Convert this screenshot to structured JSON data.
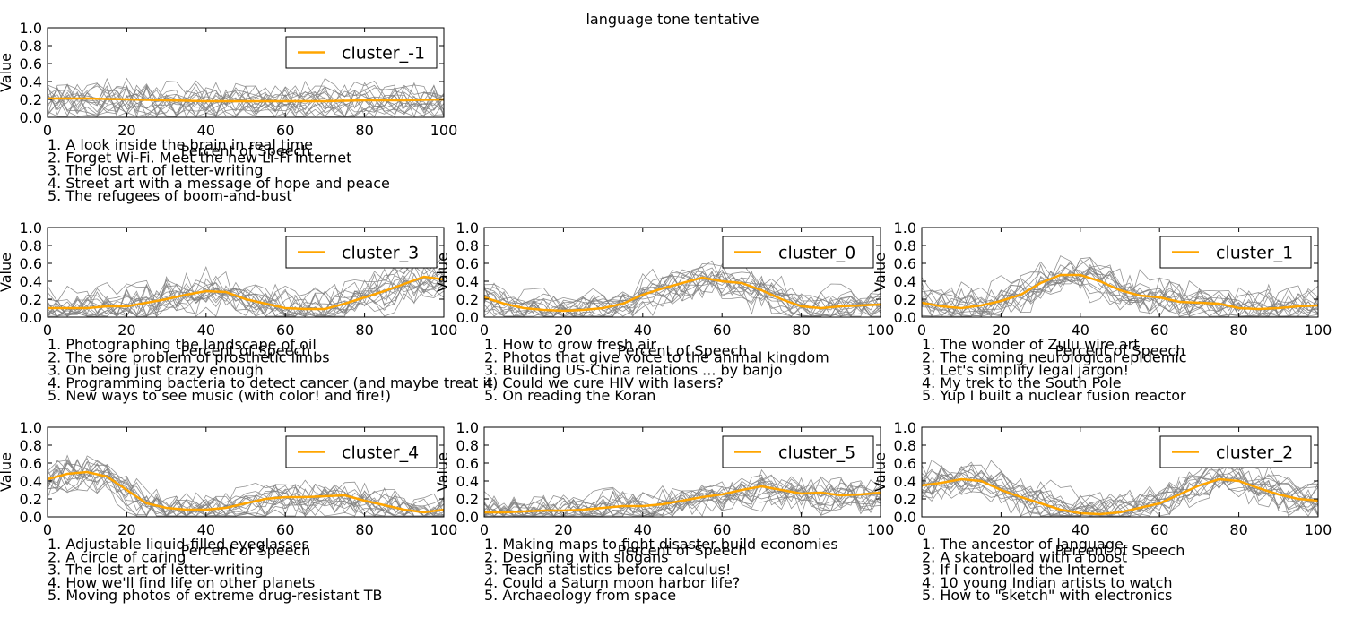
{
  "figure_title": "language tone tentative",
  "colors": {
    "cluster_line": "#FFA500",
    "sample_lines": "#808080",
    "axes": "#000000",
    "background": "#FFFFFF"
  },
  "chart_data": [
    {
      "type": "line",
      "title": "",
      "xlabel": "Percent of Speech",
      "ylabel": "Value",
      "xlim": [
        0,
        100
      ],
      "ylim": [
        0,
        1
      ],
      "xticks": [
        0,
        20,
        40,
        60,
        80,
        100
      ],
      "yticks": [
        0.0,
        0.2,
        0.4,
        0.6,
        0.8,
        1.0
      ],
      "grid": false,
      "legend_position": "top-right",
      "series": [
        {
          "name": "cluster_-1",
          "x": [
            0,
            10,
            20,
            30,
            40,
            50,
            60,
            70,
            80,
            90,
            100
          ],
          "values": [
            0.21,
            0.21,
            0.2,
            0.19,
            0.18,
            0.18,
            0.18,
            0.18,
            0.19,
            0.19,
            0.2
          ]
        }
      ],
      "talks": [
        "1. A look inside the brain in real time",
        "2. Forget Wi-Fi. Meet the new Li-Fi Internet",
        "3. The lost art of letter-writing",
        "4. Street art with a message of hope and peace",
        "5. The refugees of boom-and-bust"
      ]
    },
    {
      "type": "line",
      "title": "",
      "xlabel": "Percent of Speech",
      "ylabel": "Value",
      "xlim": [
        0,
        100
      ],
      "ylim": [
        0,
        1
      ],
      "xticks": [
        0,
        20,
        40,
        60,
        80,
        100
      ],
      "yticks": [
        0.0,
        0.2,
        0.4,
        0.6,
        0.8,
        1.0
      ],
      "grid": false,
      "legend_position": "top-right",
      "series": [
        {
          "name": "cluster_3",
          "x": [
            0,
            5,
            10,
            15,
            20,
            25,
            30,
            35,
            40,
            45,
            50,
            55,
            60,
            65,
            70,
            75,
            80,
            85,
            90,
            95,
            100
          ],
          "values": [
            0.1,
            0.1,
            0.1,
            0.12,
            0.12,
            0.16,
            0.2,
            0.25,
            0.29,
            0.28,
            0.2,
            0.15,
            0.1,
            0.09,
            0.09,
            0.15,
            0.22,
            0.29,
            0.37,
            0.45,
            0.42
          ]
        }
      ],
      "talks": [
        "1. Photographing the landscape of oil",
        "2. The sore problem of prosthetic limbs",
        "3. On being just crazy enough",
        "4. Programming bacteria to detect cancer (and maybe treat it)",
        "5. New ways to see music (with color! and fire!)"
      ]
    },
    {
      "type": "line",
      "title": "",
      "xlabel": "Percent of Speech",
      "ylabel": "Value",
      "xlim": [
        0,
        100
      ],
      "ylim": [
        0,
        1
      ],
      "xticks": [
        0,
        20,
        40,
        60,
        80,
        100
      ],
      "yticks": [
        0.0,
        0.2,
        0.4,
        0.6,
        0.8,
        1.0
      ],
      "grid": false,
      "legend_position": "top-right",
      "series": [
        {
          "name": "cluster_0",
          "x": [
            0,
            5,
            10,
            15,
            20,
            25,
            30,
            35,
            40,
            45,
            50,
            55,
            60,
            65,
            70,
            75,
            80,
            85,
            90,
            95,
            100
          ],
          "values": [
            0.22,
            0.15,
            0.1,
            0.08,
            0.07,
            0.08,
            0.1,
            0.15,
            0.25,
            0.32,
            0.38,
            0.44,
            0.4,
            0.38,
            0.3,
            0.2,
            0.12,
            0.1,
            0.12,
            0.13,
            0.14
          ]
        }
      ],
      "talks": [
        "1. How to grow fresh air",
        "2. Photos that give voice to the animal kingdom",
        "3. Building US-China relations ... by banjo",
        "4. Could we cure HIV with lasers?",
        "5. On reading the Koran"
      ]
    },
    {
      "type": "line",
      "title": "",
      "xlabel": "Percent of Speech",
      "ylabel": "Value",
      "xlim": [
        0,
        100
      ],
      "ylim": [
        0,
        1
      ],
      "xticks": [
        0,
        20,
        40,
        60,
        80,
        100
      ],
      "yticks": [
        0.0,
        0.2,
        0.4,
        0.6,
        0.8,
        1.0
      ],
      "grid": false,
      "legend_position": "top-right",
      "series": [
        {
          "name": "cluster_1",
          "x": [
            0,
            5,
            10,
            15,
            20,
            25,
            30,
            35,
            40,
            45,
            50,
            55,
            60,
            65,
            70,
            75,
            80,
            85,
            90,
            95,
            100
          ],
          "values": [
            0.16,
            0.12,
            0.1,
            0.13,
            0.18,
            0.25,
            0.38,
            0.47,
            0.47,
            0.4,
            0.3,
            0.24,
            0.22,
            0.17,
            0.16,
            0.15,
            0.1,
            0.09,
            0.1,
            0.12,
            0.13
          ]
        }
      ],
      "talks": [
        "1. The wonder of Zulu wire art",
        "2. The coming neurological epidemic",
        "3. Let's simplify legal jargon!",
        "4. My trek to the South Pole",
        "5. Yup  I built a nuclear fusion reactor"
      ]
    },
    {
      "type": "line",
      "title": "",
      "xlabel": "Percent of Speech",
      "ylabel": "Value",
      "xlim": [
        0,
        100
      ],
      "ylim": [
        0,
        1
      ],
      "xticks": [
        0,
        20,
        40,
        60,
        80,
        100
      ],
      "yticks": [
        0.0,
        0.2,
        0.4,
        0.6,
        0.8,
        1.0
      ],
      "grid": false,
      "legend_position": "top-right",
      "series": [
        {
          "name": "cluster_4",
          "x": [
            0,
            5,
            10,
            15,
            20,
            25,
            30,
            35,
            40,
            45,
            50,
            55,
            60,
            65,
            70,
            75,
            80,
            85,
            90,
            95,
            100
          ],
          "values": [
            0.42,
            0.48,
            0.5,
            0.45,
            0.3,
            0.15,
            0.1,
            0.08,
            0.08,
            0.1,
            0.15,
            0.2,
            0.22,
            0.22,
            0.23,
            0.24,
            0.18,
            0.13,
            0.08,
            0.05,
            0.08
          ]
        }
      ],
      "talks": [
        "1. Adjustable liquid-filled eyeglasses",
        "2. A circle of caring",
        "3. The lost art of letter-writing",
        "4. How we'll find life on other planets",
        "5. Moving photos of extreme drug-resistant TB"
      ]
    },
    {
      "type": "line",
      "title": "",
      "xlabel": "Percent of Speech",
      "ylabel": "Value",
      "xlim": [
        0,
        100
      ],
      "ylim": [
        0,
        1
      ],
      "xticks": [
        0,
        20,
        40,
        60,
        80,
        100
      ],
      "yticks": [
        0.0,
        0.2,
        0.4,
        0.6,
        0.8,
        1.0
      ],
      "grid": false,
      "legend_position": "top-right",
      "series": [
        {
          "name": "cluster_5",
          "x": [
            0,
            5,
            10,
            15,
            20,
            25,
            30,
            35,
            40,
            45,
            50,
            55,
            60,
            65,
            70,
            75,
            80,
            85,
            90,
            95,
            100
          ],
          "values": [
            0.05,
            0.05,
            0.06,
            0.07,
            0.07,
            0.08,
            0.1,
            0.12,
            0.12,
            0.14,
            0.18,
            0.22,
            0.25,
            0.3,
            0.34,
            0.3,
            0.26,
            0.27,
            0.24,
            0.25,
            0.27
          ]
        }
      ],
      "talks": [
        "1. Making maps to fight disaster  build economies",
        "2. Designing with slogans",
        "3. Teach statistics before calculus!",
        "4. Could a Saturn moon harbor life?",
        "5. Archaeology from space"
      ]
    },
    {
      "type": "line",
      "title": "",
      "xlabel": "Percent of Speech",
      "ylabel": "Value",
      "xlim": [
        0,
        100
      ],
      "ylim": [
        0,
        1
      ],
      "xticks": [
        0,
        20,
        40,
        60,
        80,
        100
      ],
      "yticks": [
        0.0,
        0.2,
        0.4,
        0.6,
        0.8,
        1.0
      ],
      "grid": false,
      "legend_position": "top-right",
      "series": [
        {
          "name": "cluster_2",
          "x": [
            0,
            5,
            10,
            15,
            20,
            25,
            30,
            35,
            40,
            45,
            50,
            55,
            60,
            65,
            70,
            75,
            80,
            85,
            90,
            95,
            100
          ],
          "values": [
            0.35,
            0.38,
            0.42,
            0.4,
            0.3,
            0.22,
            0.15,
            0.08,
            0.04,
            0.03,
            0.05,
            0.1,
            0.15,
            0.25,
            0.35,
            0.42,
            0.4,
            0.32,
            0.25,
            0.2,
            0.18
          ]
        }
      ],
      "talks": [
        "1. The ancestor of language",
        "2. A skateboard  with a boost",
        "3. If I controlled the Internet",
        "4. 10 young Indian artists to watch",
        "5. How to \"sketch\" with electronics"
      ]
    }
  ]
}
